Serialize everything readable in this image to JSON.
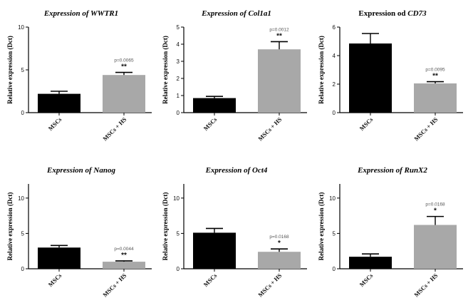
{
  "colors": {
    "msc_bar": "#000000",
    "hs_bar": "#a8a8a8",
    "axis": "#000000"
  },
  "chart_data": [
    {
      "type": "bar",
      "title": {
        "prefix": "Expression of ",
        "gene": "WWTR1"
      },
      "ylabel": "Relative expression (Dct)",
      "ylim": [
        0,
        10
      ],
      "yticks": [
        "0",
        "5",
        "10"
      ],
      "categories": [
        "MSCs",
        "MSCs + HS"
      ],
      "values": [
        2.2,
        4.4
      ],
      "errors": [
        0.3,
        0.3
      ],
      "annotation": {
        "pvalue": "p=0.0065",
        "stars": "**"
      }
    },
    {
      "type": "bar",
      "title": {
        "prefix": "Expression of ",
        "gene": "Col1a1"
      },
      "ylabel": "Relative expression (Dct)",
      "ylim": [
        0,
        5
      ],
      "yticks": [
        "0",
        "1",
        "2",
        "3",
        "4",
        "5"
      ],
      "categories": [
        "MSCs",
        "MSCs + HS"
      ],
      "values": [
        0.85,
        3.7
      ],
      "errors": [
        0.1,
        0.45
      ],
      "annotation": {
        "pvalue": "p=0.0012",
        "stars": "**"
      }
    },
    {
      "type": "bar",
      "title": {
        "prefix": "Expression od ",
        "gene": "CD73"
      },
      "ylabel": "Relative expression (Dct)",
      "ylim": [
        0,
        6
      ],
      "yticks": [
        "0",
        "2",
        "4",
        "6"
      ],
      "categories": [
        "MSCs",
        "MSCs + HS"
      ],
      "values": [
        4.85,
        2.05
      ],
      "errors": [
        0.7,
        0.12
      ],
      "annotation": {
        "pvalue": "p=0.0095",
        "stars": "**"
      }
    },
    {
      "type": "bar",
      "title": {
        "prefix": "Expression of ",
        "gene": "Nanog"
      },
      "ylabel": "Relative expression (Dct)",
      "ylim": [
        0,
        12
      ],
      "yticks": [
        "0",
        "5",
        "10"
      ],
      "categories": [
        "MSCs",
        "MSCs + HS"
      ],
      "values": [
        3.0,
        1.0
      ],
      "errors": [
        0.3,
        0.12
      ],
      "annotation": {
        "pvalue": "p=0.0044",
        "stars": "**"
      }
    },
    {
      "type": "bar",
      "title": {
        "prefix": "Expression of ",
        "gene": "Oct4"
      },
      "ylabel": "Relative expression (Dct)",
      "ylim": [
        0,
        12
      ],
      "yticks": [
        "0",
        "5",
        "10"
      ],
      "categories": [
        "MSCs",
        "MSCs + HS"
      ],
      "values": [
        5.1,
        2.4
      ],
      "errors": [
        0.6,
        0.4
      ],
      "annotation": {
        "pvalue": "p=0.0168",
        "stars": "*"
      }
    },
    {
      "type": "bar",
      "title": {
        "prefix": "Expression of ",
        "gene": "RunX2"
      },
      "ylabel": "Relative expression (Dct)",
      "ylim": [
        0,
        12
      ],
      "yticks": [
        "0",
        "5",
        "10"
      ],
      "categories": [
        "MSCs",
        "MSCs + HS"
      ],
      "values": [
        1.7,
        6.2
      ],
      "errors": [
        0.4,
        1.2
      ],
      "annotation": {
        "pvalue": "p=0.0168",
        "stars": "*"
      }
    }
  ]
}
